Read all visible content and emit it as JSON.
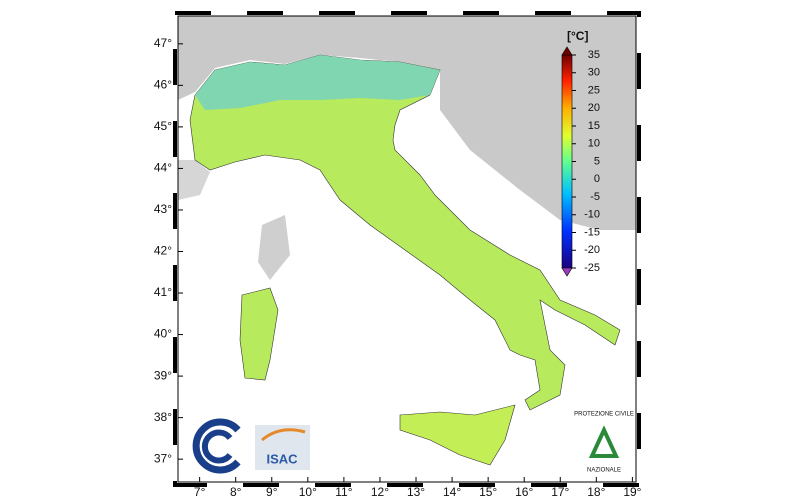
{
  "map": {
    "xlim": [
      6.4,
      19.1
    ],
    "ylim": [
      36.45,
      47.67
    ],
    "xticks": [
      {
        "value": 7,
        "label": "7°"
      },
      {
        "value": 8,
        "label": "8°"
      },
      {
        "value": 9,
        "label": "9°"
      },
      {
        "value": 10,
        "label": "10°"
      },
      {
        "value": 11,
        "label": "11°"
      },
      {
        "value": 12,
        "label": "12°"
      },
      {
        "value": 13,
        "label": "13°"
      },
      {
        "value": 14,
        "label": "14°"
      },
      {
        "value": 15,
        "label": "15°"
      },
      {
        "value": 16,
        "label": "16°"
      },
      {
        "value": 17,
        "label": "17°"
      },
      {
        "value": 18,
        "label": "18°"
      },
      {
        "value": 19,
        "label": "19°"
      }
    ],
    "yticks": [
      {
        "value": 37,
        "label": "37°"
      },
      {
        "value": 38,
        "label": "38°"
      },
      {
        "value": 39,
        "label": "39°"
      },
      {
        "value": 40,
        "label": "40°"
      },
      {
        "value": 41,
        "label": "41°"
      },
      {
        "value": 42,
        "label": "42°"
      },
      {
        "value": 43,
        "label": "43°"
      },
      {
        "value": 44,
        "label": "44°"
      },
      {
        "value": 45,
        "label": "45°"
      },
      {
        "value": 46,
        "label": "46°"
      },
      {
        "value": 47,
        "label": "47°"
      }
    ],
    "colorbar": {
      "label": "[°C]",
      "lim": [
        -25,
        35
      ],
      "ticks": [
        35,
        30,
        25,
        20,
        15,
        10,
        5,
        0,
        -5,
        -10,
        -15,
        -20,
        -25
      ]
    }
  },
  "logos": {
    "isac": "ISAC",
    "civil_protection_top": "PROTEZIONE CIVILE",
    "civil_protection_bottom": "NAZIONALE"
  }
}
